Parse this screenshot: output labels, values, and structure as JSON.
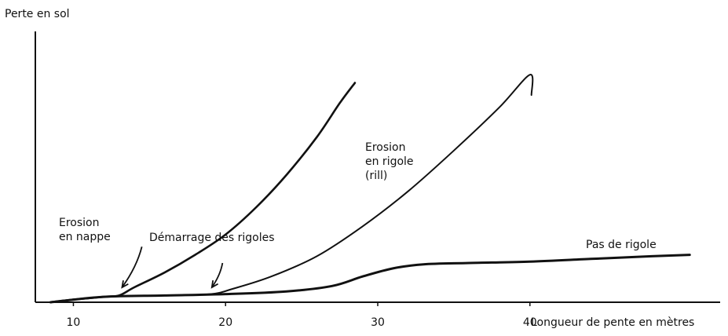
{
  "chart_data": {
    "type": "line",
    "ylabel": "Perte en sol",
    "xlabel": "Longueur de pente en mètres",
    "xlim": [
      7.5,
      52.5
    ],
    "ylim": [
      0,
      10
    ],
    "x_ticks": [
      10,
      20,
      30,
      40
    ],
    "grid": false,
    "series": [
      {
        "points": [
          [
            8.5,
            0
          ],
          [
            10,
            0.1
          ],
          [
            12,
            0.2
          ],
          [
            13,
            0.25
          ],
          [
            14,
            0.55
          ],
          [
            16,
            1.1
          ],
          [
            18,
            1.75
          ],
          [
            20,
            2.5
          ],
          [
            22,
            3.5
          ],
          [
            24,
            4.7
          ],
          [
            26,
            6.1
          ],
          [
            27.5,
            7.35
          ],
          [
            28.5,
            8.1
          ]
        ]
      },
      {
        "points": [
          [
            8.5,
            0
          ],
          [
            12,
            0.2
          ],
          [
            16,
            0.25
          ],
          [
            19,
            0.3
          ],
          [
            20.5,
            0.5
          ],
          [
            23,
            0.95
          ],
          [
            26,
            1.7
          ],
          [
            29,
            2.8
          ],
          [
            32,
            4.1
          ],
          [
            35,
            5.6
          ],
          [
            38,
            7.2
          ],
          [
            40,
            8.4
          ],
          [
            40.1,
            7.65
          ]
        ]
      },
      {
        "points": [
          [
            8.5,
            0
          ],
          [
            12,
            0.2
          ],
          [
            16,
            0.25
          ],
          [
            20,
            0.3
          ],
          [
            24,
            0.4
          ],
          [
            27,
            0.6
          ],
          [
            29,
            0.95
          ],
          [
            31,
            1.25
          ],
          [
            33,
            1.4
          ],
          [
            36,
            1.45
          ],
          [
            40,
            1.5
          ],
          [
            44,
            1.6
          ],
          [
            48,
            1.7
          ],
          [
            50.5,
            1.75
          ]
        ]
      }
    ],
    "annotations": [
      {
        "lines": [
          "Erosion",
          "en nappe"
        ]
      },
      {
        "lines": [
          "Démarrage des rigoles"
        ]
      },
      {
        "lines": [
          "Erosion",
          "en rigole",
          "(rill)"
        ]
      },
      {
        "lines": [
          "Pas de rigole"
        ]
      }
    ],
    "arrows": [
      {
        "from": [
          14.5,
          2.05
        ],
        "to": [
          13.2,
          0.55
        ]
      },
      {
        "from": [
          19.8,
          1.45
        ],
        "to": [
          19.1,
          0.55
        ]
      }
    ]
  }
}
